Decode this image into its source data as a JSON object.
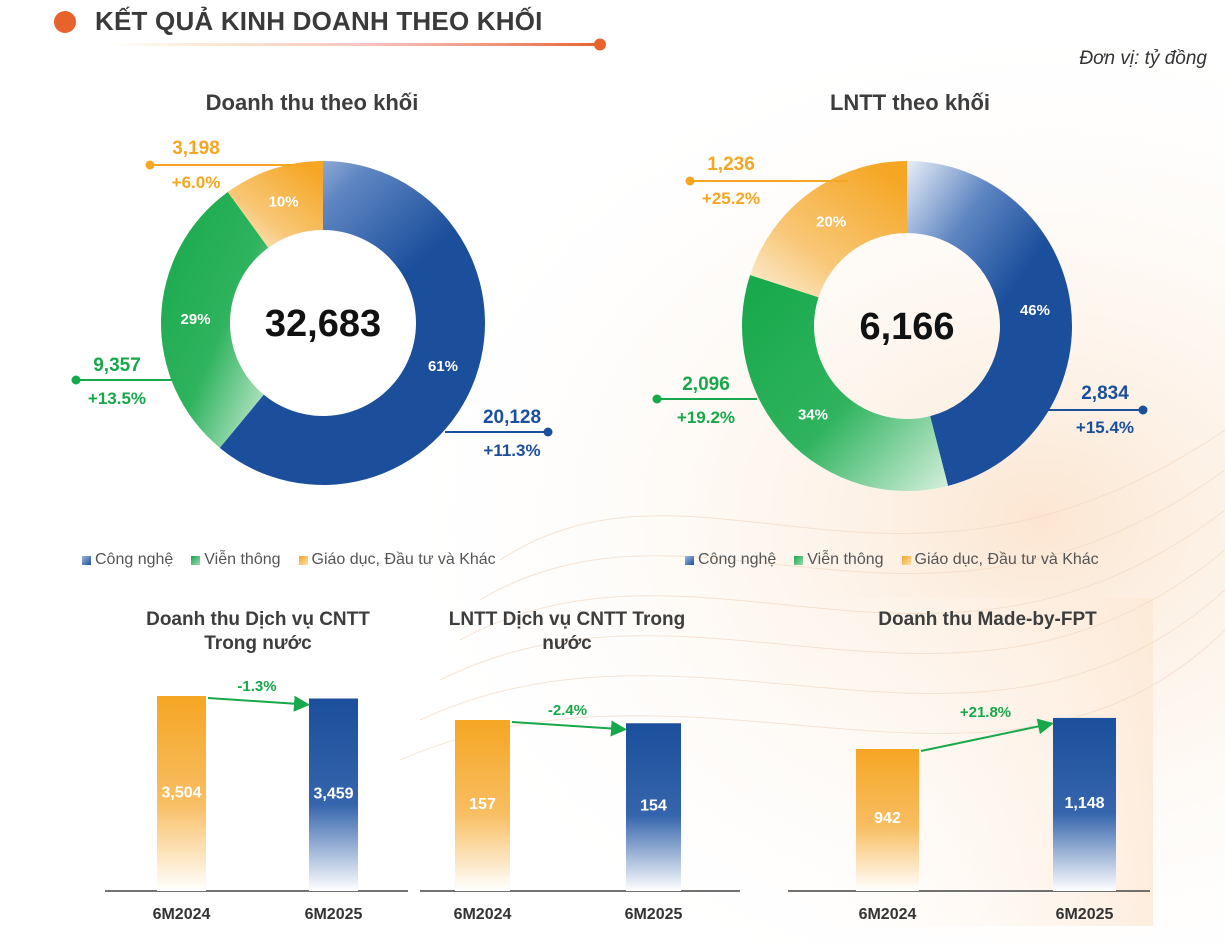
{
  "header": {
    "title": "KẾT QUẢ KINH DOANH THEO KHỐI",
    "unit": "Đơn vị: tỷ đồng"
  },
  "colors": {
    "tech": "#1b4f9c",
    "telecom": "#16a84a",
    "edu": "#f5a623",
    "accent": "#e8622c"
  },
  "legend": [
    "Công nghệ",
    "Viễn thông",
    "Giáo dục, Đầu tư và Khác"
  ],
  "chart_data": [
    {
      "type": "pie",
      "title": "Doanh thu theo khối",
      "total": "32,683",
      "slices": [
        {
          "name": "Công nghệ",
          "percent": 61,
          "pct_label": "61%",
          "value": "20,128",
          "growth": "+11.3%"
        },
        {
          "name": "Viễn thông",
          "percent": 29,
          "pct_label": "29%",
          "value": "9,357",
          "growth": "+13.5%"
        },
        {
          "name": "Giáo dục, Đầu tư và Khác",
          "percent": 10,
          "pct_label": "10%",
          "value": "3,198",
          "growth": "+6.0%"
        }
      ]
    },
    {
      "type": "pie",
      "title": "LNTT theo khối",
      "total": "6,166",
      "slices": [
        {
          "name": "Công nghệ",
          "percent": 46,
          "pct_label": "46%",
          "value": "2,834",
          "growth": "+15.4%"
        },
        {
          "name": "Viễn thông",
          "percent": 34,
          "pct_label": "34%",
          "value": "2,096",
          "growth": "+19.2%"
        },
        {
          "name": "Giáo dục, Đầu tư và Khác",
          "percent": 20,
          "pct_label": "20%",
          "value": "1,236",
          "growth": "+25.2%"
        }
      ]
    },
    {
      "type": "bar",
      "title": "Doanh thu Dịch vụ CNTT Trong nước",
      "categories": [
        "6M2024",
        "6M2025"
      ],
      "values": [
        3504,
        3459
      ],
      "value_labels": [
        "3,504",
        "3,459"
      ],
      "change": "-1.3%"
    },
    {
      "type": "bar",
      "title": "LNTT Dịch vụ CNTT Trong nước",
      "categories": [
        "6M2024",
        "6M2025"
      ],
      "values": [
        157,
        154
      ],
      "value_labels": [
        "157",
        "154"
      ],
      "change": "-2.4%"
    },
    {
      "type": "bar",
      "title": "Doanh thu Made-by-FPT",
      "categories": [
        "6M2024",
        "6M2025"
      ],
      "values": [
        942,
        1148
      ],
      "value_labels": [
        "942",
        "1,148"
      ],
      "change": "+21.8%"
    }
  ]
}
